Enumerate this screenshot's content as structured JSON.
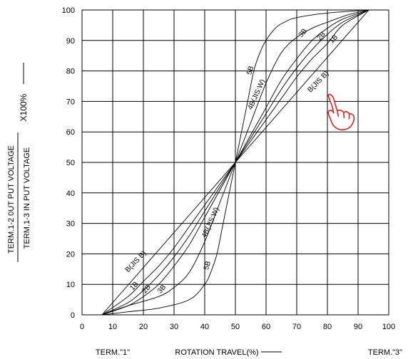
{
  "chart_data": {
    "type": "line",
    "title": "",
    "xlabel": "ROTATION TRAVEL(%)",
    "ylabel_numerator": "TERM.1-2 0UT PUT VOLTAGE",
    "ylabel_denominator": "TERM.1-3 IN PUT VOLTAGE",
    "ylabel_multiplier": "X100%",
    "x_end_labels": {
      "left": "TERM.\"1\"",
      "right": "TERM.\"3\""
    },
    "xlim": [
      0,
      100
    ],
    "ylim": [
      0,
      100
    ],
    "xticks": [
      0,
      10,
      20,
      30,
      40,
      50,
      60,
      70,
      80,
      90,
      100
    ],
    "yticks": [
      0,
      10,
      20,
      30,
      40,
      50,
      60,
      70,
      80,
      90,
      100
    ],
    "grid": true,
    "series": [
      {
        "name": "5B",
        "label_upper": "5B",
        "label_lower": "5B",
        "x": [
          6.5,
          15,
          25,
          35,
          40,
          42,
          44,
          46,
          48,
          50,
          52,
          54,
          56,
          58,
          60,
          63,
          66,
          70,
          80,
          93.5
        ],
        "y": [
          0,
          1,
          2.2,
          5,
          10,
          14,
          20,
          30,
          40,
          50,
          60,
          70,
          80,
          86,
          90,
          94,
          96,
          97.5,
          99,
          100
        ]
      },
      {
        "name": "4B(JIS:W)",
        "label_upper": "4B(JIS:W)",
        "label_lower": "4B(JIS:W)",
        "x": [
          6.5,
          15,
          25,
          30,
          35,
          40,
          45,
          50,
          55,
          60,
          65,
          70,
          75,
          80,
          87,
          93.5
        ],
        "y": [
          0,
          3,
          6,
          9,
          14,
          24,
          37,
          50,
          63,
          76,
          86,
          91,
          94,
          96,
          98.5,
          100
        ]
      },
      {
        "name": "3B",
        "label_upper": "3B",
        "label_lower": "3B",
        "x": [
          6.5,
          15,
          20,
          25,
          30,
          35,
          40,
          45,
          50,
          55,
          60,
          65,
          70,
          75,
          80,
          85,
          93.5
        ],
        "y": [
          0,
          3,
          6,
          10,
          16,
          23,
          32,
          41,
          50,
          59,
          68,
          77,
          84,
          90,
          94,
          97,
          100
        ]
      },
      {
        "name": "2B",
        "label_upper": "2B",
        "label_lower": "2B",
        "x": [
          6.5,
          15,
          20,
          25,
          30,
          35,
          40,
          45,
          50,
          55,
          60,
          65,
          70,
          75,
          80,
          85,
          93.5
        ],
        "y": [
          0,
          4,
          8,
          13,
          19,
          26,
          34,
          42,
          50,
          58,
          66,
          74,
          81,
          87,
          92,
          96,
          100
        ]
      },
      {
        "name": "1B",
        "label_upper": "1B",
        "label_lower": "1B",
        "x": [
          6.5,
          15,
          20,
          25,
          30,
          35,
          40,
          45,
          50,
          55,
          60,
          65,
          70,
          75,
          80,
          85,
          93.5
        ],
        "y": [
          0,
          6,
          11,
          16,
          22,
          29,
          36,
          43,
          50,
          57,
          64,
          71,
          78,
          84,
          89,
          95,
          100
        ]
      },
      {
        "name": "B(JIS:B)",
        "label_upper": "B(JIS B)",
        "label_lower": "B(JIS B)",
        "x": [
          6.5,
          50,
          93.5
        ],
        "y": [
          0,
          50,
          100
        ]
      }
    ],
    "annotations": [
      {
        "type": "hand-pointer-icon",
        "color": "#e0201b",
        "x": 81,
        "y": 70
      }
    ]
  }
}
